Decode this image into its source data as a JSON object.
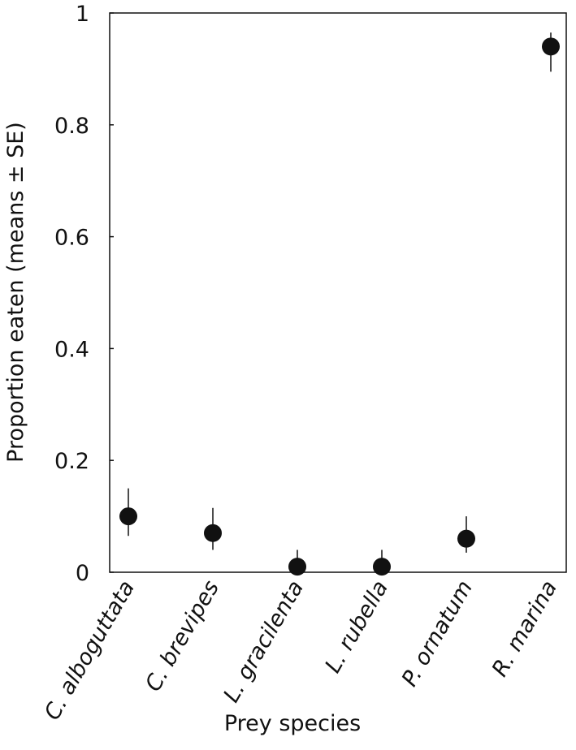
{
  "chart_data": {
    "type": "errorpoint",
    "categories": [
      "C. alboguttata",
      "C. brevipes",
      "L. gracilenta",
      "L. rubella",
      "P. ornatum",
      "R. marina"
    ],
    "values": [
      0.1,
      0.07,
      0.01,
      0.01,
      0.06,
      0.94
    ],
    "error_plus": [
      0.05,
      0.045,
      0.03,
      0.03,
      0.04,
      0.025
    ],
    "error_minus": [
      0.035,
      0.03,
      0.01,
      0.01,
      0.025,
      0.045
    ],
    "color": "#111111",
    "ylim": [
      0,
      1
    ],
    "yticks": [
      0,
      0.2,
      0.4,
      0.6,
      0.8,
      1
    ],
    "y_label": "Proportion eaten (means ± SE)",
    "x_label": "Prey species"
  }
}
